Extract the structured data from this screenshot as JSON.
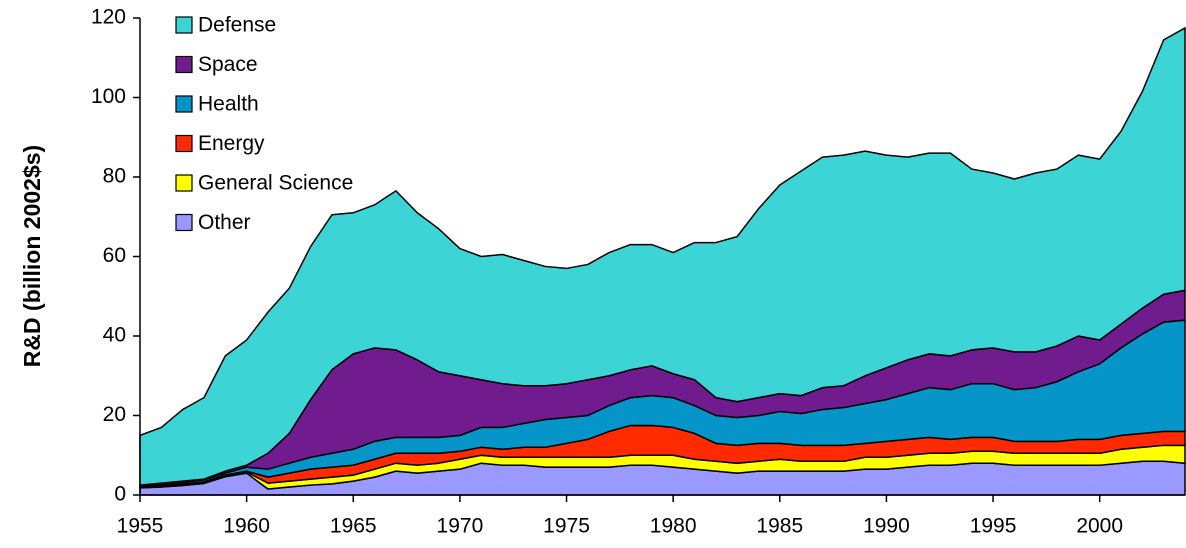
{
  "chart_data": {
    "type": "stacked_area",
    "y_label": "R&D (billion 2002$s)",
    "x": [
      1955,
      1956,
      1957,
      1958,
      1959,
      1960,
      1961,
      1962,
      1963,
      1964,
      1965,
      1966,
      1967,
      1968,
      1969,
      1970,
      1971,
      1972,
      1973,
      1974,
      1975,
      1976,
      1977,
      1978,
      1979,
      1980,
      1981,
      1982,
      1983,
      1984,
      1985,
      1986,
      1987,
      1988,
      1989,
      1990,
      1991,
      1992,
      1993,
      1994,
      1995,
      1996,
      1997,
      1998,
      1999,
      2000,
      2001,
      2002,
      2003,
      2004
    ],
    "series": [
      {
        "name": "Defense",
        "color": "#3dd4d6",
        "values": [
          12.5,
          14,
          18,
          20.5,
          29,
          31.5,
          35.5,
          36.5,
          38.5,
          39,
          35.5,
          36,
          40,
          37,
          36,
          32,
          31,
          32.5,
          31.5,
          30,
          29,
          29,
          31,
          31.5,
          30.5,
          30.5,
          34.5,
          39,
          41.5,
          47.5,
          52.5,
          56.5,
          58,
          58,
          56.5,
          53.5,
          51,
          50.5,
          51,
          45.5,
          44,
          43.5,
          45,
          44.5,
          45.5,
          45.5,
          48.5,
          54.5,
          64,
          66
        ]
      },
      {
        "name": "Space",
        "color": "#711c8e",
        "values": [
          0.2,
          0.3,
          0.3,
          0.2,
          0.5,
          0.5,
          4,
          7.5,
          14.5,
          21,
          24,
          23.5,
          22,
          19.5,
          16.5,
          15,
          12,
          11,
          9.5,
          8.5,
          8.5,
          9,
          7.5,
          7,
          7.5,
          6,
          6.5,
          4.5,
          4,
          4.5,
          4.5,
          4.5,
          5.5,
          5.5,
          7,
          8,
          8.5,
          8.5,
          8.5,
          8.5,
          9,
          9.5,
          9,
          9,
          9,
          6,
          6,
          6.5,
          7,
          7.5
        ]
      },
      {
        "name": "Health",
        "color": "#0595c9",
        "values": [
          0.2,
          0.3,
          0.4,
          0.5,
          0.5,
          1,
          2,
          2.5,
          3,
          3.5,
          4,
          4.5,
          4,
          4,
          4,
          4,
          5,
          5.5,
          6,
          7,
          6.5,
          6,
          6.5,
          7,
          7.5,
          7.5,
          7,
          7,
          7,
          7,
          8,
          8,
          9,
          9.5,
          10,
          10.5,
          11.5,
          12.5,
          12.5,
          13.5,
          13.5,
          13,
          13.5,
          15,
          17,
          19,
          22,
          25,
          27.5,
          28
        ]
      },
      {
        "name": "Energy",
        "color": "#ff2a00",
        "values": [
          0.1,
          0.2,
          0.2,
          0.2,
          0.2,
          0.2,
          1.5,
          2,
          2.5,
          2.5,
          2.5,
          2.5,
          2.5,
          3,
          2.5,
          2,
          2,
          2,
          2.5,
          2.5,
          3.5,
          4.5,
          6.5,
          7.5,
          7.5,
          7,
          6.5,
          4.5,
          4.5,
          4.5,
          4,
          4,
          4,
          4,
          3.5,
          4,
          4,
          4,
          3.5,
          3.5,
          3.5,
          3,
          3,
          3,
          3.5,
          3.5,
          3.5,
          3.5,
          3.5,
          3.5
        ]
      },
      {
        "name": "General Science",
        "color": "#ffff00",
        "values": [
          0.2,
          0.2,
          0.2,
          0.2,
          0.2,
          0.3,
          1.5,
          1.5,
          1.5,
          1.7,
          1.5,
          2,
          2,
          2,
          2,
          2.5,
          2,
          2,
          2,
          2.5,
          2.5,
          2.5,
          2.5,
          2.5,
          2.5,
          3,
          2.5,
          2.5,
          2.5,
          2.5,
          3,
          2.5,
          2.5,
          2.5,
          3,
          3,
          3,
          3,
          3,
          3,
          3,
          3,
          3,
          3,
          3,
          3,
          3.5,
          3.5,
          4,
          4.5
        ]
      },
      {
        "name": "Other",
        "color": "#9999ff",
        "values": [
          1.8,
          2,
          2.4,
          2.9,
          4.6,
          5.5,
          1.5,
          2,
          2.5,
          2.8,
          3.5,
          4.5,
          6,
          5.5,
          6,
          6.5,
          8,
          7.5,
          7.5,
          7,
          7,
          7,
          7,
          7.5,
          7.5,
          7,
          6.5,
          6,
          5.5,
          6,
          6,
          6,
          6,
          6,
          6.5,
          6.5,
          7,
          7.5,
          7.5,
          8,
          8,
          7.5,
          7.5,
          7.5,
          7.5,
          7.5,
          8,
          8.5,
          8.5,
          8
        ]
      }
    ],
    "xlim": [
      1955,
      2004
    ],
    "xticks": [
      1955,
      1960,
      1965,
      1970,
      1975,
      1980,
      1985,
      1990,
      1995,
      2000
    ],
    "ylim": [
      0,
      120
    ],
    "yticks": [
      0,
      20,
      40,
      60,
      80,
      100,
      120
    ],
    "grid": false,
    "legend": "upper left"
  }
}
